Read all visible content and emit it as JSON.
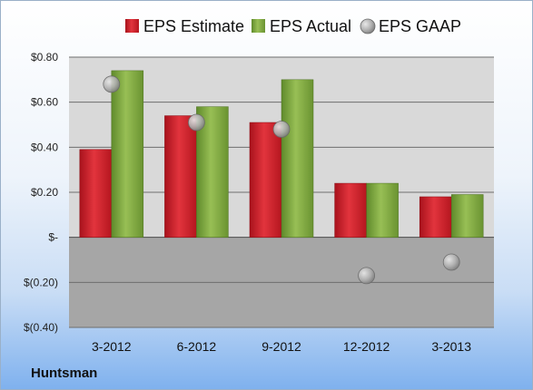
{
  "company": "Huntsman",
  "chart_data": {
    "type": "bar",
    "categories": [
      "3-2012",
      "6-2012",
      "9-2012",
      "12-2012",
      "3-2013"
    ],
    "series": [
      {
        "name": "EPS Estimate",
        "kind": "bar",
        "color": "#c81f2a",
        "values": [
          0.39,
          0.54,
          0.51,
          0.24,
          0.18
        ]
      },
      {
        "name": "EPS Actual",
        "kind": "bar",
        "color": "#7aa33f",
        "values": [
          0.74,
          0.58,
          0.7,
          0.24,
          0.19
        ]
      },
      {
        "name": "EPS GAAP",
        "kind": "marker",
        "color": "#a9a9a9",
        "values": [
          0.68,
          0.51,
          0.48,
          -0.17,
          -0.11
        ]
      }
    ],
    "yticks": [
      0.8,
      0.6,
      0.4,
      0.2,
      0,
      -0.2,
      -0.4
    ],
    "ytick_labels": [
      "$0.80",
      "$0.60",
      "$0.40",
      "$0.20",
      "$-",
      "$(0.20)",
      "$(0.40)"
    ],
    "ylim": [
      -0.4,
      0.8
    ],
    "grid": true,
    "legend_position": "top"
  }
}
